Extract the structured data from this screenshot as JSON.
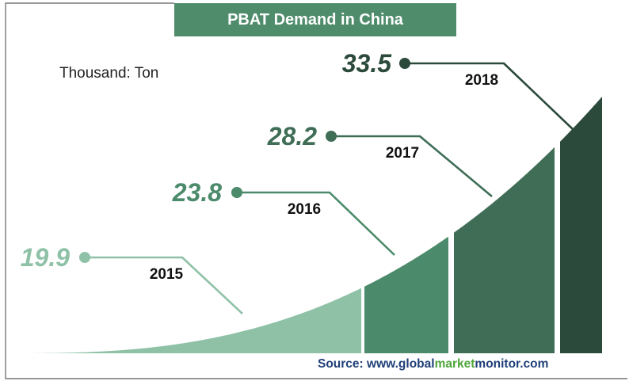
{
  "chart_data": {
    "type": "area",
    "title": "PBAT Demand in China",
    "unit_label": "Thousand: Ton",
    "categories": [
      "2015",
      "2016",
      "2017",
      "2018"
    ],
    "values": [
      "19.9",
      "23.8",
      "28.2",
      "33.5"
    ],
    "colors": [
      "#8fc1a7",
      "#4b8a6b",
      "#3f6d56",
      "#2c4a3b"
    ],
    "value_label_colors": [
      "#8fc1a7",
      "#4b8a6b",
      "#3f6d56",
      "#2c4a3b"
    ]
  },
  "source": {
    "prefix": "Source: www.",
    "part1": "global",
    "part2": "market",
    "part3": "monitor",
    "suffix": ".com"
  }
}
